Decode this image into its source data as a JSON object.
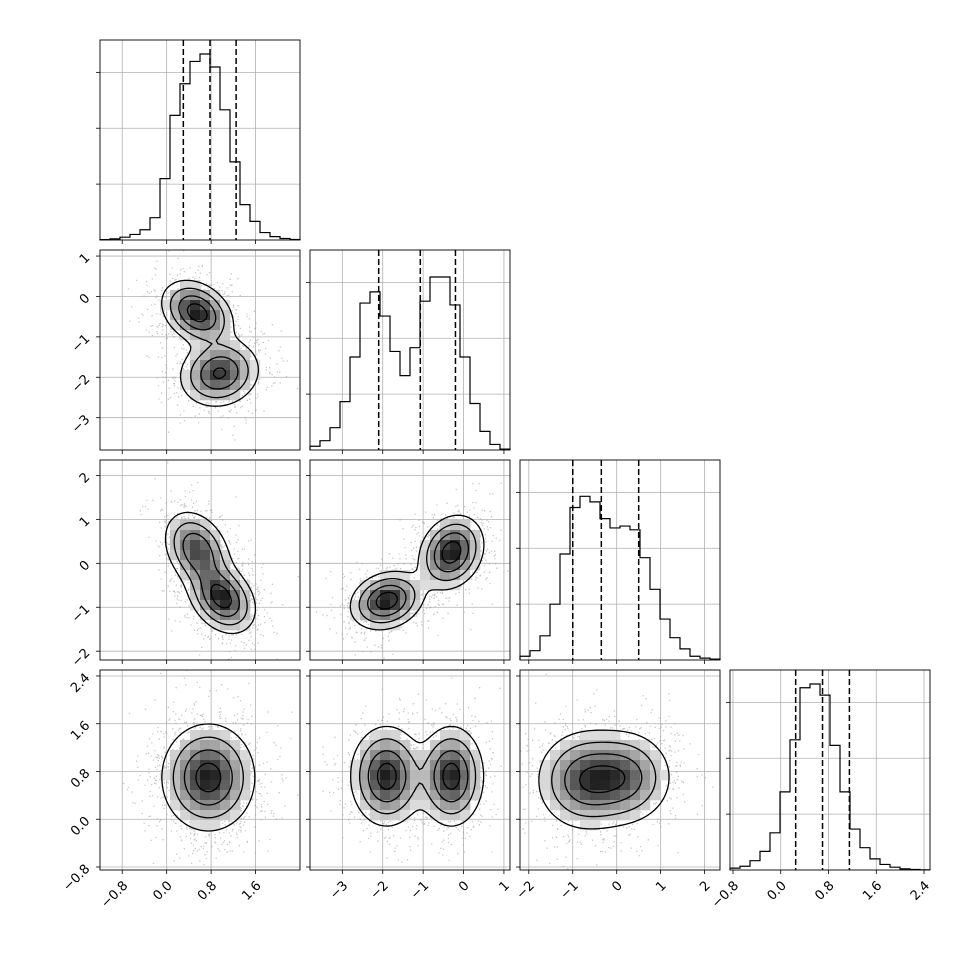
{
  "chart_data": {
    "type": "corner",
    "title": "",
    "grid": true,
    "parameters": [
      {
        "quantiles": [
          0.3,
          0.78,
          1.25
        ],
        "range": [
          -1.2,
          2.4
        ],
        "hist": [
          0.002,
          0.006,
          0.015,
          0.03,
          0.055,
          0.12,
          0.33,
          0.67,
          0.84,
          0.96,
          1.0,
          0.93,
          0.7,
          0.42,
          0.19,
          0.1,
          0.04,
          0.018,
          0.008,
          0.003
        ]
      },
      {
        "quantiles": [
          -2.1,
          -1.07,
          -0.2
        ],
        "range": [
          -3.8,
          1.15
        ],
        "hist": [
          0.02,
          0.05,
          0.12,
          0.26,
          0.5,
          0.79,
          0.85,
          0.72,
          0.53,
          0.4,
          0.55,
          0.8,
          0.93,
          0.93,
          0.78,
          0.5,
          0.25,
          0.1,
          0.03,
          0.005
        ]
      },
      {
        "quantiles": [
          -1.0,
          -0.35,
          0.5
        ],
        "range": [
          -2.2,
          2.35
        ],
        "hist": [
          0.02,
          0.05,
          0.13,
          0.3,
          0.57,
          0.82,
          0.88,
          0.85,
          0.76,
          0.71,
          0.72,
          0.7,
          0.55,
          0.38,
          0.22,
          0.12,
          0.06,
          0.02,
          0.01,
          0.005
        ]
      },
      {
        "quantiles": [
          0.25,
          0.7,
          1.15
        ],
        "range": [
          -0.85,
          2.5
        ],
        "hist": [
          0.01,
          0.02,
          0.05,
          0.1,
          0.2,
          0.42,
          0.7,
          0.98,
          1.0,
          0.94,
          0.67,
          0.42,
          0.22,
          0.12,
          0.06,
          0.03,
          0.015,
          0.006,
          0.003,
          0.001
        ]
      }
    ],
    "ticks": [
      {
        "values": [
          -0.8,
          0.0,
          0.8,
          1.6
        ],
        "labels": [
          "−0.8",
          "0.0",
          "0.8",
          "1.6"
        ]
      },
      {
        "values": [
          -3,
          -2,
          -1,
          0,
          1
        ],
        "labels": [
          "−3",
          "−2",
          "−1",
          "0",
          "1"
        ]
      },
      {
        "values": [
          -2,
          -1,
          0,
          1,
          2
        ],
        "labels": [
          "−2",
          "−1",
          "0",
          "1",
          "2"
        ]
      },
      {
        "values": [
          -0.8,
          0.0,
          0.8,
          1.6,
          2.4
        ],
        "labels": [
          "−0.8",
          "0.0",
          "0.8",
          "1.6",
          "2.4"
        ]
      }
    ],
    "pairs": [
      {
        "row": 1,
        "col": 0,
        "modes": [
          {
            "cx": 0.55,
            "cy": -0.4,
            "sx": 0.32,
            "sy": 0.4,
            "rho": -0.3,
            "w": 1.0
          },
          {
            "cx": 0.95,
            "cy": -1.9,
            "sx": 0.36,
            "sy": 0.42,
            "rho": 0.1,
            "w": 0.9
          }
        ]
      },
      {
        "row": 2,
        "col": 0,
        "modes": [
          {
            "cx": 0.55,
            "cy": 0.3,
            "sx": 0.3,
            "sy": 0.45,
            "rho": -0.3,
            "w": 0.85
          },
          {
            "cx": 1.0,
            "cy": -0.8,
            "sx": 0.3,
            "sy": 0.4,
            "rho": -0.3,
            "w": 1.0
          }
        ]
      },
      {
        "row": 3,
        "col": 0,
        "modes": [
          {
            "cx": 0.75,
            "cy": 0.7,
            "sx": 0.42,
            "sy": 0.45,
            "rho": 0.0,
            "w": 1.0
          }
        ]
      },
      {
        "row": 2,
        "col": 1,
        "modes": [
          {
            "cx": -1.9,
            "cy": -0.85,
            "sx": 0.45,
            "sy": 0.33,
            "rho": 0.2,
            "w": 1.0
          },
          {
            "cx": -0.3,
            "cy": 0.25,
            "sx": 0.4,
            "sy": 0.42,
            "rho": 0.2,
            "w": 1.0
          }
        ]
      },
      {
        "row": 3,
        "col": 1,
        "modes": [
          {
            "cx": -1.9,
            "cy": 0.72,
            "sx": 0.45,
            "sy": 0.42,
            "rho": 0.0,
            "w": 1.0
          },
          {
            "cx": -0.3,
            "cy": 0.72,
            "sx": 0.4,
            "sy": 0.42,
            "rho": 0.0,
            "w": 1.0
          }
        ]
      },
      {
        "row": 3,
        "col": 2,
        "modes": [
          {
            "cx": -0.75,
            "cy": 0.65,
            "sx": 0.55,
            "sy": 0.42,
            "rho": 0.0,
            "w": 1.0
          },
          {
            "cx": 0.2,
            "cy": 0.7,
            "sx": 0.55,
            "sy": 0.4,
            "rho": 0.0,
            "w": 0.9
          }
        ]
      }
    ]
  }
}
